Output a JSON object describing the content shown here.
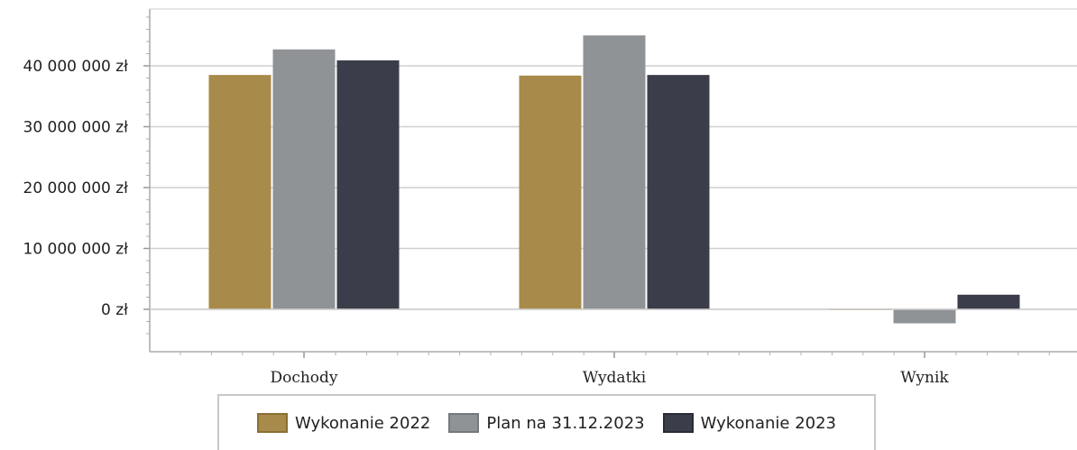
{
  "chart_data": {
    "type": "bar",
    "categories": [
      "Dochody",
      "Wydatki",
      "Wynik"
    ],
    "series": [
      {
        "name": "Wykonanie 2022",
        "values": [
          38500000,
          38400000,
          100000
        ],
        "color": "#a88a4a",
        "border": "#8a6f33"
      },
      {
        "name": "Plan na 31.12.2023",
        "values": [
          42700000,
          45000000,
          -2300000
        ],
        "color": "#909396",
        "border": "#76797c"
      },
      {
        "name": "Wykonanie 2023",
        "values": [
          40900000,
          38500000,
          2400000
        ],
        "color": "#3b3e4a",
        "border": "#2a2c35"
      }
    ],
    "y_ticks": [
      {
        "value": 0,
        "label": "0 zł"
      },
      {
        "value": 10000000,
        "label": "10 000 000 zł"
      },
      {
        "value": 20000000,
        "label": "20 000 000 zł"
      },
      {
        "value": 30000000,
        "label": "30 000 000 zł"
      },
      {
        "value": 40000000,
        "label": "40 000 000 zł"
      }
    ],
    "ylim": [
      -6500000,
      49000000
    ],
    "grid": true,
    "legend_position": "bottom"
  }
}
